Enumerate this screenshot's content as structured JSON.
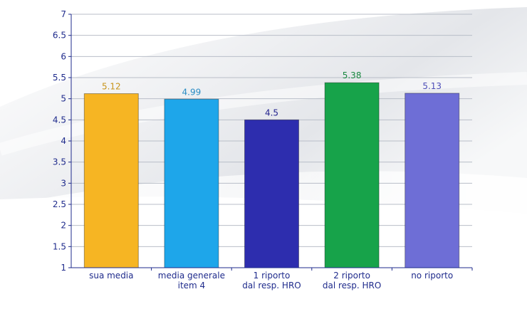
{
  "chart_data": {
    "type": "bar",
    "categories": [
      [
        "sua media"
      ],
      [
        "media generale",
        "item 4"
      ],
      [
        "1 riporto",
        "dal resp. HRO"
      ],
      [
        "2 riporto",
        "dal resp. HRO"
      ],
      [
        "no riporto"
      ]
    ],
    "values": [
      5.12,
      4.99,
      4.5,
      5.38,
      5.13
    ],
    "value_labels": [
      "5.12",
      "4.99",
      "4.5",
      "5.38",
      "5.13"
    ],
    "bar_colors": [
      "#F6B523",
      "#1EA6EA",
      "#2D2DAE",
      "#17A34A",
      "#6E6ED6"
    ],
    "label_colors": [
      "#C8941A",
      "#2A8CC4",
      "#24248E",
      "#17873E",
      "#4F4FB8"
    ],
    "ylim": [
      1,
      7
    ],
    "yticks": [
      "1",
      "1.5",
      "2",
      "2.5",
      "3",
      "3.5",
      "4",
      "4.5",
      "5",
      "5.5",
      "6",
      "6.5",
      "7"
    ],
    "grid": true,
    "axis_color": "#1F2B8C",
    "grid_color": "#B9BEC8"
  }
}
